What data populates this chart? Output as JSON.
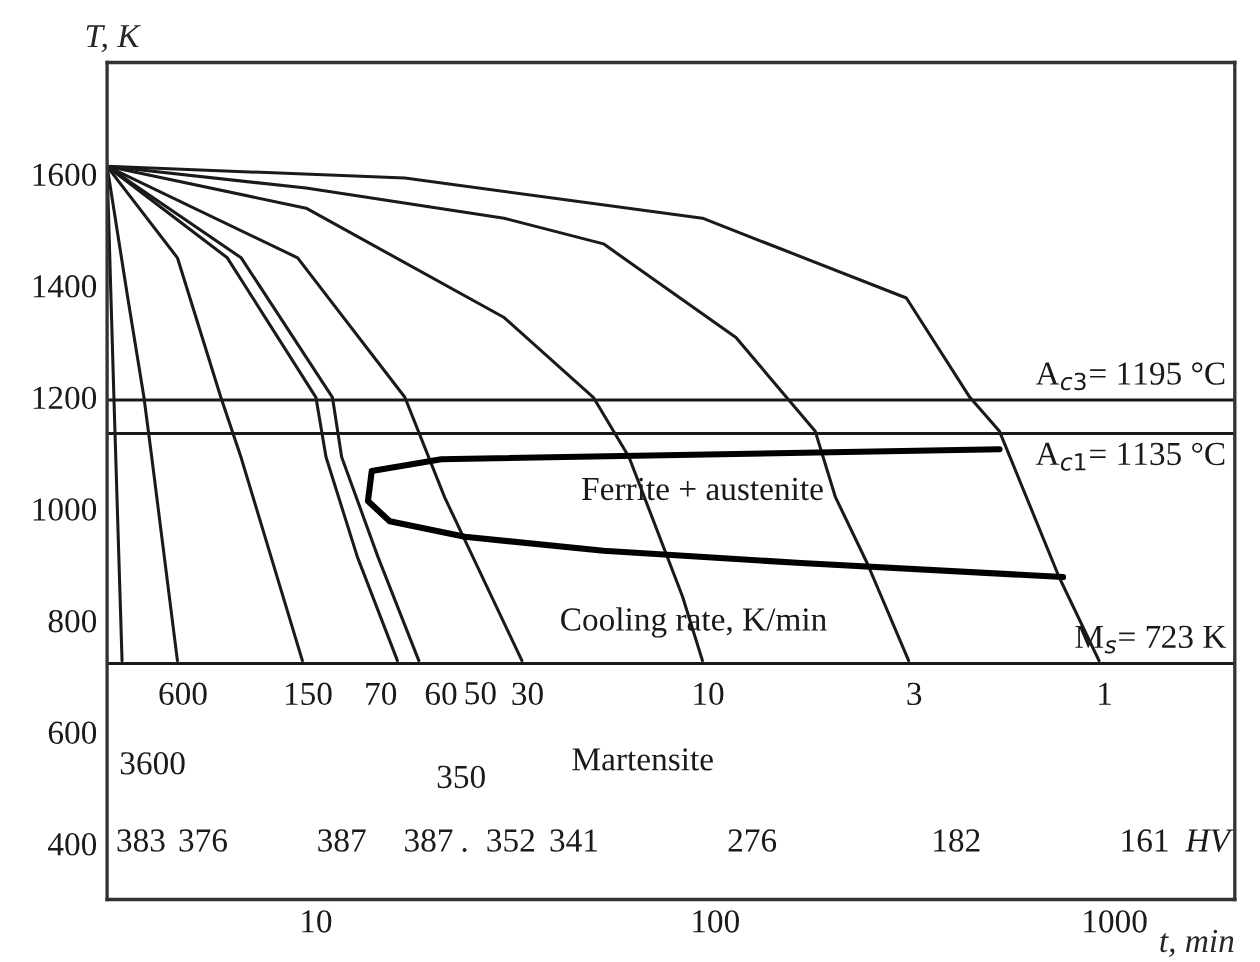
{
  "chart_data": {
    "type": "line",
    "xlabel": "t, min",
    "ylabel": "T, K",
    "log": "x",
    "xlim": [
      3,
      2000
    ],
    "xticks": [
      10,
      100,
      1000
    ],
    "ylim": [
      300,
      1800
    ],
    "yticks": [
      400,
      600,
      800,
      1000,
      1200,
      1400,
      1600
    ],
    "grid": false,
    "legend": false,
    "marker": "none",
    "line_style": "solid",
    "series": [
      {
        "name": "3600",
        "color": "#1a1a1a",
        "x": [
          3,
          3.12,
          3.27
        ],
        "values": [
          1614,
          1200,
          728
        ]
      },
      {
        "name": "600",
        "color": "#1a1a1a",
        "x": [
          3,
          3.38,
          3.71,
          3.88,
          4.5
        ],
        "values": [
          1614,
          1378,
          1200,
          1093,
          728
        ]
      },
      {
        "name": "150",
        "color": "#1a1a1a",
        "x": [
          3,
          4.5,
          5.78,
          6.49,
          9.25
        ],
        "values": [
          1614,
          1450,
          1200,
          1093,
          728
        ]
      },
      {
        "name": "70",
        "color": "#1a1a1a",
        "x": [
          3,
          6,
          10,
          10.6,
          12.7,
          16
        ],
        "values": [
          1614,
          1450,
          1200,
          1093,
          914,
          728
        ]
      },
      {
        "name": "60",
        "color": "#1a1a1a",
        "x": [
          3,
          6.5,
          11,
          11.6,
          14.3,
          18.1
        ],
        "values": [
          1614,
          1450,
          1200,
          1093,
          914,
          728
        ]
      },
      {
        "name": "30",
        "color": "#1a1a1a",
        "x": [
          3,
          9,
          16.7,
          21,
          32.8
        ],
        "values": [
          1614,
          1450,
          1200,
          1021,
          728
        ]
      },
      {
        "name": "10",
        "color": "#1a1a1a",
        "x": [
          3,
          9.45,
          29.6,
          49.5,
          60.8,
          82.8,
          92.9
        ],
        "values": [
          1614,
          1539,
          1343,
          1200,
          1093,
          843,
          728
        ]
      },
      {
        "name": "3",
        "color": "#1a1a1a",
        "x": [
          3,
          9.45,
          29.6,
          52.5,
          112.7,
          178,
          200,
          240,
          305
        ],
        "values": [
          1614,
          1575,
          1521,
          1475,
          1307,
          1139,
          1021,
          903,
          728
        ]
      },
      {
        "name": "1",
        "color": "#1a1a1a",
        "x": [
          3,
          16.7,
          92.9,
          301,
          434,
          515,
          726,
          914
        ],
        "values": [
          1614,
          1593,
          1521,
          1378,
          1200,
          1139,
          878,
          728
        ]
      },
      {
        "color": "#000000",
        "x": [
          515,
          20.6,
          13.8,
          13.5,
          15.3,
          23.6,
          52.5,
          164,
          743
        ],
        "values": [
          1107,
          1089,
          1068,
          1014,
          978,
          950,
          925,
          903,
          878
        ]
      }
    ],
    "ref_lines": [
      {
        "axis": "y",
        "value": 1195,
        "label": "A$_{c3}$= 1195 °C",
        "color": "#1a1a1a"
      },
      {
        "axis": "y",
        "value": 1135,
        "label": "A$_{c1}$= 1135 °C",
        "color": "#1a1a1a"
      },
      {
        "axis": "y",
        "value": 723,
        "label": "M$_{s}$= 723 K",
        "color": "#1a1a1a"
      }
    ],
    "annotations": [
      "Ferrite + austenite",
      "Cooling rate, K/min",
      "Martensite",
      "50",
      "350",
      "383",
      "376",
      "387",
      "387",
      ".",
      "352",
      "341",
      "276",
      "182",
      "161",
      "HV"
    ]
  }
}
